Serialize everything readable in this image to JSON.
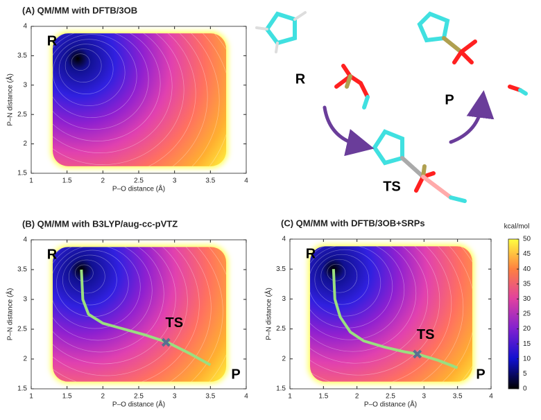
{
  "chart_data": [
    {
      "type": "contour",
      "title": "(A) QM/MM with DFTB/3OB",
      "xlabel": "P–O distance (Å)",
      "ylabel": "P–N distance (Å)",
      "xlim": [
        1,
        4
      ],
      "ylim": [
        1.5,
        4
      ],
      "xticks": [
        1,
        1.5,
        2,
        2.5,
        3,
        3.5,
        4
      ],
      "yticks": [
        1.5,
        2,
        2.5,
        3,
        3.5,
        4
      ],
      "minimum": {
        "x": 1.65,
        "y": 3.45
      },
      "labels": {
        "reactant": "R"
      }
    },
    {
      "type": "contour",
      "title": "(B) QM/MM with B3LYP/aug-cc-pVTZ",
      "xlabel": "P–O distance (Å)",
      "ylabel": "P–N distance (Å)",
      "xlim": [
        1,
        4
      ],
      "ylim": [
        1.5,
        4
      ],
      "xticks": [
        1,
        1.5,
        2,
        2.5,
        3,
        3.5,
        4
      ],
      "yticks": [
        1.5,
        2,
        2.5,
        3,
        3.5,
        4
      ],
      "minimum": {
        "x": 1.7,
        "y": 3.5
      },
      "labels": {
        "reactant": "R",
        "ts": "TS",
        "product": "P"
      },
      "path": {
        "x": [
          1.7,
          1.72,
          1.8,
          2.0,
          2.3,
          2.6,
          2.9,
          3.2,
          3.5
        ],
        "y": [
          3.5,
          3.0,
          2.75,
          2.6,
          2.5,
          2.4,
          2.28,
          2.1,
          1.9
        ]
      },
      "ts": {
        "x": 2.88,
        "y": 2.28
      }
    },
    {
      "type": "contour",
      "title": "(C) QM/MM with DFTB/3OB+SRPs",
      "xlabel": "P–O distance (Å)",
      "ylabel": "P–N distance (Å)",
      "xlim": [
        1,
        4
      ],
      "ylim": [
        1.5,
        4
      ],
      "xticks": [
        1,
        1.5,
        2,
        2.5,
        3,
        3.5,
        4
      ],
      "yticks": [
        1.5,
        2,
        2.5,
        3,
        3.5,
        4
      ],
      "minimum": {
        "x": 1.65,
        "y": 3.5
      },
      "labels": {
        "reactant": "R",
        "ts": "TS",
        "product": "P"
      },
      "path": {
        "x": [
          1.65,
          1.67,
          1.75,
          1.9,
          2.1,
          2.4,
          2.7,
          2.9,
          3.2,
          3.5
        ],
        "y": [
          3.5,
          3.0,
          2.7,
          2.45,
          2.3,
          2.2,
          2.12,
          2.08,
          1.98,
          1.85
        ]
      },
      "ts": {
        "x": 2.9,
        "y": 2.08
      },
      "colorbar": {
        "label": "kcal/mol",
        "lim": [
          0,
          50
        ],
        "ticks": [
          0,
          5,
          10,
          15,
          20,
          25,
          30,
          35,
          40,
          45,
          50
        ]
      }
    }
  ],
  "scheme": {
    "reactant": "R",
    "transition_state": "TS",
    "product": "P"
  }
}
